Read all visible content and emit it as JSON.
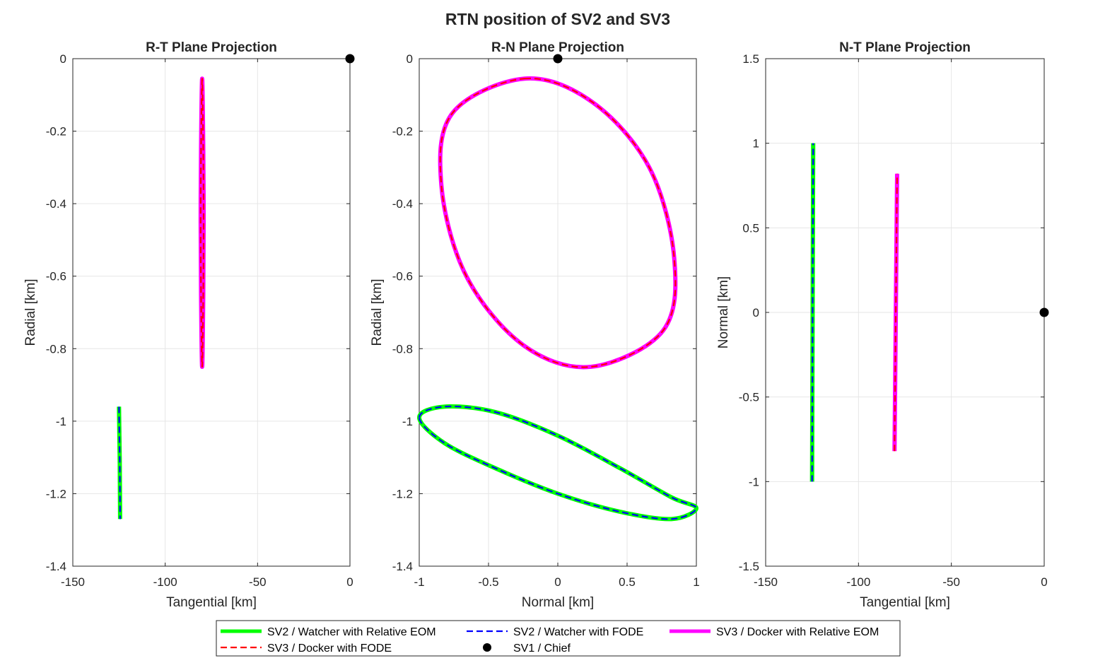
{
  "figure": {
    "title": "RTN position of SV2 and SV3",
    "legend": {
      "placement": "bottom",
      "entries": [
        {
          "label": "SV2 / Watcher with Relative EOM",
          "color": "#00ff00",
          "style": "solid-thick"
        },
        {
          "label": "SV2 / Watcher with FODE",
          "color": "#0000ff",
          "style": "dashed"
        },
        {
          "label": "SV3 / Docker with Relative EOM",
          "color": "#ff00ff",
          "style": "solid-thick"
        },
        {
          "label": "SV3 / Docker with FODE",
          "color": "#ff0000",
          "style": "dashed"
        },
        {
          "label": "SV1 / Chief",
          "color": "#000000",
          "style": "marker"
        }
      ]
    }
  },
  "chart_data": [
    {
      "type": "line",
      "title": "R-T Plane Projection",
      "xlabel": "Tangential [km]",
      "ylabel": "Radial [km]",
      "xlim": [
        -150,
        0
      ],
      "ylim": [
        -1.4,
        0
      ],
      "xticks": [
        -150,
        -100,
        -50,
        0
      ],
      "xtick_labels": [
        "-150",
        "-100",
        "-50",
        "0"
      ],
      "yticks": [
        -1.4,
        -1.2,
        -1,
        -0.8,
        -0.6,
        -0.4,
        -0.2,
        0
      ],
      "ytick_labels": [
        "-1.4",
        "-1.2",
        "-1",
        "-0.8",
        "-0.6",
        "-0.4",
        "-0.2",
        "0"
      ],
      "grid": true,
      "series": [
        {
          "color": "#00ff00",
          "style": "solid-thick",
          "x": [
            -125.0,
            -124.8,
            -124.6,
            -124.5,
            -124.4
          ],
          "y": [
            -0.96,
            -1.04,
            -1.11,
            -1.19,
            -1.27
          ]
        },
        {
          "color": "#0000ff",
          "style": "dashed",
          "x": [
            -125.0,
            -124.8,
            -124.6,
            -124.5,
            -124.4
          ],
          "y": [
            -0.96,
            -1.04,
            -1.11,
            -1.19,
            -1.27
          ]
        },
        {
          "color": "#ff00ff",
          "style": "solid-thick",
          "x": [
            -80.0,
            -80.6,
            -80.8,
            -80.6,
            -80.0,
            -79.4,
            -79.2,
            -79.4,
            -80.0
          ],
          "y": [
            -0.055,
            -0.25,
            -0.45,
            -0.65,
            -0.85,
            -0.65,
            -0.45,
            -0.25,
            -0.055
          ]
        },
        {
          "color": "#ff0000",
          "style": "dashed",
          "x": [
            -80.0,
            -80.6,
            -80.8,
            -80.6,
            -80.0,
            -79.4,
            -79.2,
            -79.4,
            -80.0
          ],
          "y": [
            -0.055,
            -0.25,
            -0.45,
            -0.65,
            -0.85,
            -0.65,
            -0.45,
            -0.25,
            -0.055
          ]
        },
        {
          "color": "#000000",
          "style": "marker",
          "x": [
            0
          ],
          "y": [
            0
          ]
        }
      ]
    },
    {
      "type": "line",
      "title": "R-N Plane Projection",
      "xlabel": "Normal [km]",
      "ylabel": "Radial [km]",
      "xlim": [
        -1,
        1
      ],
      "ylim": [
        -1.4,
        0
      ],
      "xticks": [
        -1,
        -0.5,
        0,
        0.5,
        1
      ],
      "xtick_labels": [
        "-1",
        "-0.5",
        "0",
        "0.5",
        "1"
      ],
      "yticks": [
        -1.4,
        -1.2,
        -1,
        -0.8,
        -0.6,
        -0.4,
        -0.2,
        0
      ],
      "ytick_labels": [
        "-1.4",
        "-1.2",
        "-1",
        "-0.8",
        "-0.6",
        "-0.4",
        "-0.2",
        "0"
      ],
      "grid": true,
      "series": [
        {
          "color": "#00ff00",
          "style": "solid-thick",
          "x": [
            -1.0,
            -0.82,
            -0.45,
            0.0,
            0.45,
            0.82,
            1.0,
            0.82,
            0.45,
            0.0,
            -0.45,
            -0.82,
            -1.0
          ],
          "y": [
            -0.99,
            -0.96,
            -0.975,
            -1.04,
            -1.13,
            -1.21,
            -1.24,
            -1.27,
            -1.25,
            -1.2,
            -1.13,
            -1.06,
            -0.99
          ]
        },
        {
          "color": "#0000ff",
          "style": "dashed",
          "x": [
            -1.0,
            -0.82,
            -0.45,
            0.0,
            0.45,
            0.82,
            1.0,
            0.82,
            0.45,
            0.0,
            -0.45,
            -0.82,
            -1.0
          ],
          "y": [
            -0.99,
            -0.96,
            -0.975,
            -1.04,
            -1.13,
            -1.21,
            -1.24,
            -1.27,
            -1.25,
            -1.2,
            -1.13,
            -1.06,
            -0.99
          ]
        },
        {
          "color": "#ff00ff",
          "style": "solid-thick",
          "x": [
            -0.24,
            0.25,
            0.66,
            0.84,
            0.76,
            0.24,
            -0.25,
            -0.66,
            -0.84,
            -0.76,
            -0.24
          ],
          "y": [
            -0.055,
            -0.12,
            -0.3,
            -0.55,
            -0.75,
            -0.85,
            -0.79,
            -0.6,
            -0.35,
            -0.15,
            -0.055
          ]
        },
        {
          "color": "#ff0000",
          "style": "dashed",
          "x": [
            -0.24,
            0.25,
            0.66,
            0.84,
            0.76,
            0.24,
            -0.25,
            -0.66,
            -0.84,
            -0.76,
            -0.24
          ],
          "y": [
            -0.055,
            -0.12,
            -0.3,
            -0.55,
            -0.75,
            -0.85,
            -0.79,
            -0.6,
            -0.35,
            -0.15,
            -0.055
          ]
        },
        {
          "color": "#000000",
          "style": "marker",
          "x": [
            0
          ],
          "y": [
            0
          ]
        }
      ]
    },
    {
      "type": "line",
      "title": "N-T Plane Projection",
      "xlabel": "Tangential [km]",
      "ylabel": "Normal [km]",
      "xlim": [
        -150,
        0
      ],
      "ylim": [
        -1.5,
        1.5
      ],
      "xticks": [
        -150,
        -100,
        -50,
        0
      ],
      "xtick_labels": [
        "-150",
        "-100",
        "-50",
        "0"
      ],
      "yticks": [
        -1.5,
        -1,
        -0.5,
        0,
        0.5,
        1,
        1.5
      ],
      "ytick_labels": [
        "-1.5",
        "-1",
        "-0.5",
        "0",
        "0.5",
        "1",
        "1.5"
      ],
      "grid": true,
      "series": [
        {
          "color": "#00ff00",
          "style": "solid-thick",
          "x": [
            -125.0,
            -124.7,
            -124.4
          ],
          "y": [
            -1.0,
            0.0,
            1.0
          ]
        },
        {
          "color": "#0000ff",
          "style": "dashed",
          "x": [
            -125.0,
            -124.7,
            -124.4
          ],
          "y": [
            -1.0,
            0.0,
            1.0
          ]
        },
        {
          "color": "#ff00ff",
          "style": "solid-thick",
          "x": [
            -80.6,
            -79.9,
            -79.2
          ],
          "y": [
            -0.82,
            0.0,
            0.82
          ]
        },
        {
          "color": "#ff0000",
          "style": "dashed",
          "x": [
            -80.6,
            -79.9,
            -79.2
          ],
          "y": [
            -0.82,
            0.0,
            0.82
          ]
        },
        {
          "color": "#000000",
          "style": "marker",
          "x": [
            0
          ],
          "y": [
            0
          ]
        }
      ]
    }
  ]
}
